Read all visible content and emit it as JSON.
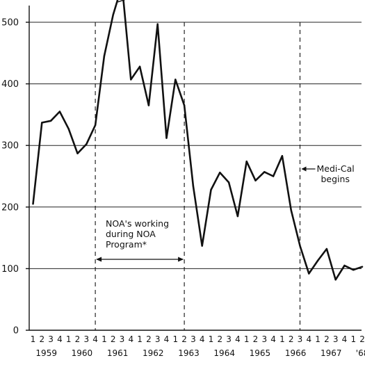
{
  "chart_data": {
    "type": "line",
    "title": "",
    "xlabel": "",
    "ylabel": "",
    "ylim": [
      0,
      520
    ],
    "yticks": [
      0,
      100,
      200,
      300,
      400,
      500
    ],
    "grid": true,
    "quarter_labels": [
      "1",
      "2",
      "3",
      "4",
      "1",
      "2",
      "3",
      "4",
      "1",
      "2",
      "3",
      "4",
      "1",
      "2",
      "3",
      "4",
      "1",
      "2",
      "3",
      "4",
      "1",
      "2",
      "3",
      "4",
      "1",
      "2",
      "3",
      "4",
      "1",
      "2",
      "3",
      "4",
      "1",
      "2",
      "3",
      "4",
      "1",
      "2"
    ],
    "year_labels": [
      {
        "text": "1959",
        "quarter": 2.5
      },
      {
        "text": "1960",
        "quarter": 6.5
      },
      {
        "text": "1961",
        "quarter": 10.5
      },
      {
        "text": "1962",
        "quarter": 14.5
      },
      {
        "text": "1963",
        "quarter": 18.5
      },
      {
        "text": "1964",
        "quarter": 22.5
      },
      {
        "text": "1965",
        "quarter": 26.5
      },
      {
        "text": "1966",
        "quarter": 30.5
      },
      {
        "text": "1967",
        "quarter": 34.5
      },
      {
        "text": "'68",
        "quarter": 38
      }
    ],
    "series": [
      {
        "x": [
          1,
          2,
          3,
          4,
          5,
          6,
          7,
          8,
          9,
          10,
          11,
          12,
          13,
          14,
          15,
          16,
          17,
          18,
          19,
          20,
          21,
          22,
          23,
          24,
          25,
          26,
          27,
          28,
          29,
          30,
          31,
          32,
          33,
          34,
          35,
          36,
          37,
          38
        ],
        "values": [
          205,
          337,
          340,
          355,
          327,
          287,
          302,
          333,
          445,
          512,
          560,
          407,
          428,
          365,
          497,
          312,
          407,
          365,
          234,
          137,
          228,
          256,
          240,
          185,
          274,
          243,
          257,
          250,
          283,
          195,
          137,
          92,
          113,
          132,
          82,
          105,
          98,
          103
        ]
      }
    ],
    "vertical_markers": [
      8,
      18,
      31
    ],
    "annotations": {
      "peak_value": "560",
      "noa_text": [
        "NOA's working",
        "during NOA",
        "Program*"
      ],
      "medical_text": [
        "Medi-Cal",
        "begins"
      ]
    }
  }
}
